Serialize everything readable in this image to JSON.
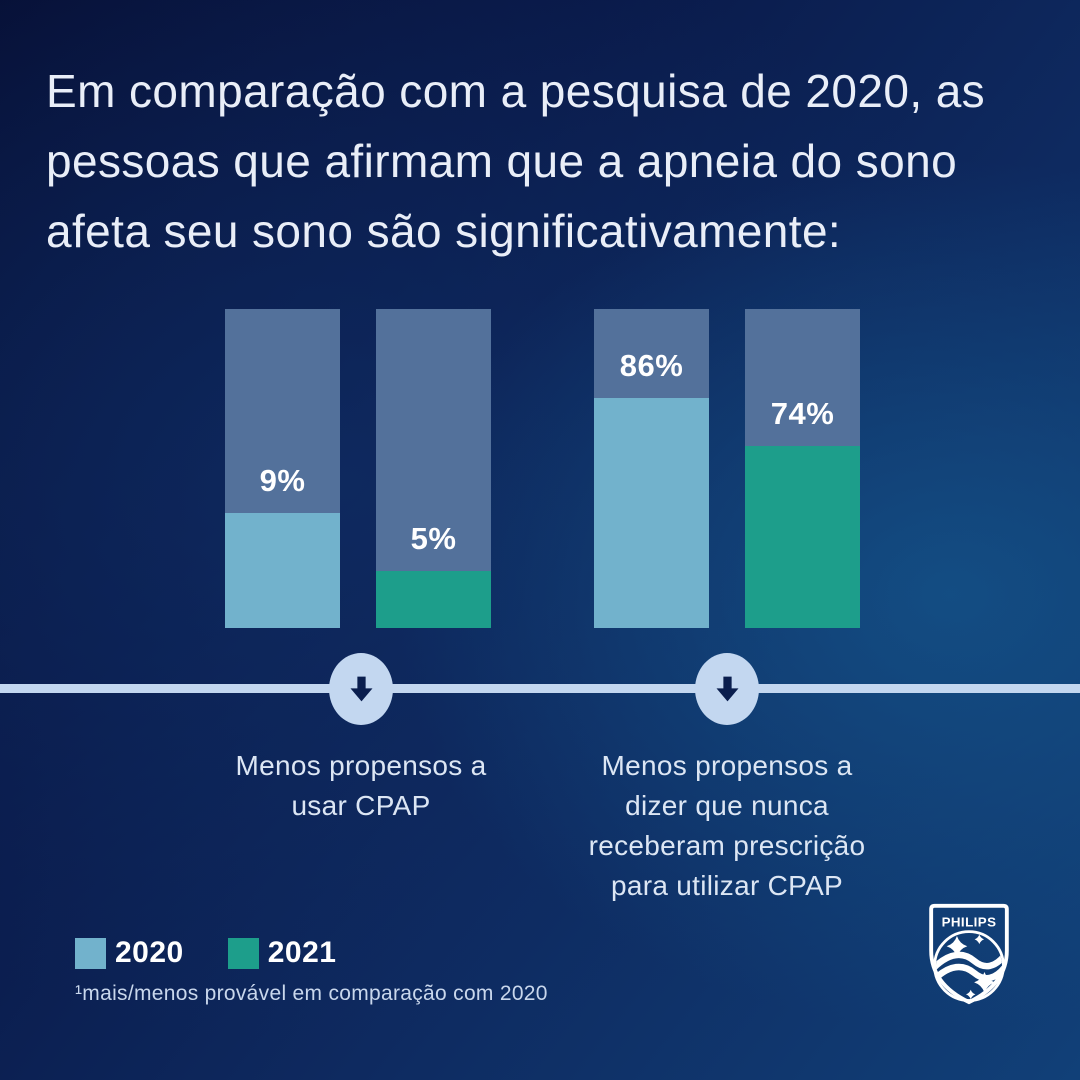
{
  "title": {
    "lines": [
      "Em comparação com a pesquisa de 2020, as",
      "pessoas que afirmam que a apneia do sono",
      "afeta seu sono são significativamente:"
    ]
  },
  "chart_data": {
    "type": "bar",
    "title": "Em comparação com a pesquisa de 2020, as pessoas que afirmam que a apneia do sono afeta seu sono são significativamente:",
    "unit": "%",
    "ylim": [
      0,
      100
    ],
    "grid": false,
    "legend_position": "bottom-left",
    "categories": [
      "Menos propensos a usar CPAP",
      "Menos propensos a dizer que nunca receberam prescrição para utilizar CPAP"
    ],
    "series": [
      {
        "name": "2020",
        "color": "#72B2CC",
        "values": [
          9,
          86
        ]
      },
      {
        "name": "2021",
        "color": "#1D9E8B",
        "values": [
          5,
          74
        ]
      }
    ],
    "groups": [
      {
        "caption": "Menos propensos a usar CPAP",
        "bars": [
          {
            "year": "2020",
            "value": 9,
            "label": "9%",
            "fill_pct": 36
          },
          {
            "year": "2021",
            "value": 5,
            "label": "5%",
            "fill_pct": 18
          }
        ]
      },
      {
        "caption": "Menos propensos a dizer que nunca receberam prescrição para utilizar CPAP",
        "bars": [
          {
            "year": "2020",
            "value": 86,
            "label": "86%",
            "fill_pct": 72
          },
          {
            "year": "2021",
            "value": 74,
            "label": "74%",
            "fill_pct": 57
          }
        ]
      }
    ],
    "legend": [
      {
        "label": "2020",
        "color": "#72B2CC"
      },
      {
        "label": "2021",
        "color": "#1D9E8B"
      }
    ],
    "track_color": "#53719B"
  },
  "footnote": "¹mais/menos provável em comparação com 2020",
  "brand": {
    "name": "PHILIPS"
  },
  "colors": {
    "background_dark": "#071138",
    "background_light": "#114078",
    "divider": "#C3D7F0",
    "arrow": "#0A1E4E",
    "title_text": "#E9EEF8",
    "caption_text": "#DCE6F4",
    "footnote_text": "#C9D7EC",
    "value_text": "#FFFFFF"
  }
}
